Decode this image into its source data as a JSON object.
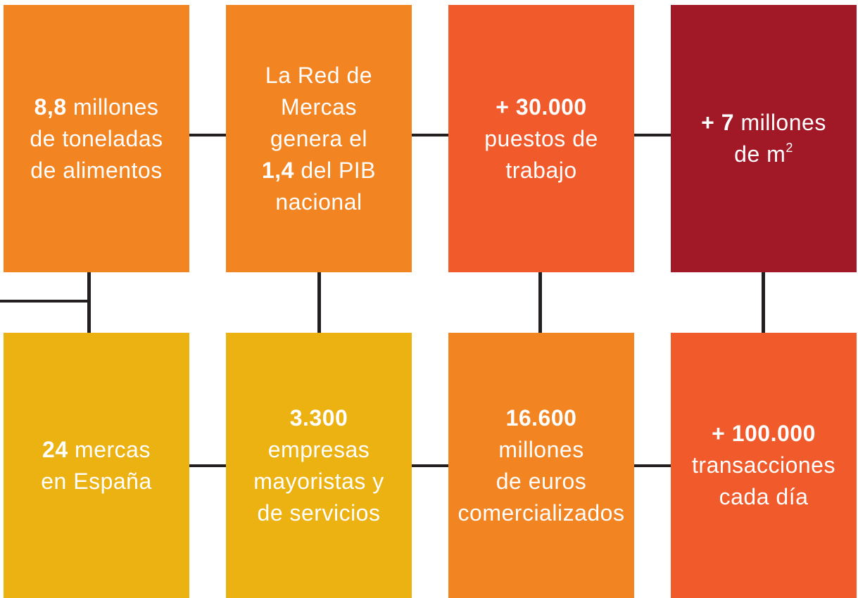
{
  "boxes": [
    {
      "color": "#f28422",
      "lines": [
        [
          {
            "text": "8,8",
            "bold": true
          },
          {
            "text": " millones"
          }
        ],
        [
          {
            "text": "de toneladas"
          }
        ],
        [
          {
            "text": "de alimentos"
          }
        ]
      ]
    },
    {
      "color": "#f28422",
      "lines": [
        [
          {
            "text": "La Red de"
          }
        ],
        [
          {
            "text": "Mercas"
          }
        ],
        [
          {
            "text": "genera el"
          }
        ],
        [
          {
            "text": "1,4",
            "bold": true
          },
          {
            "text": " del PIB"
          }
        ],
        [
          {
            "text": "nacional"
          }
        ]
      ]
    },
    {
      "color": "#f15a2b",
      "lines": [
        [
          {
            "text": "+ 30.000",
            "bold": true
          }
        ],
        [
          {
            "text": "puestos de"
          }
        ],
        [
          {
            "text": "trabajo"
          }
        ]
      ]
    },
    {
      "color": "#a11826",
      "lines": [
        [
          {
            "text": "+ 7",
            "bold": true
          },
          {
            "text": " millones"
          }
        ],
        [
          {
            "text": "de m"
          },
          {
            "text": "2",
            "sup": true
          }
        ]
      ]
    },
    {
      "color": "#ecb212",
      "lines": [
        [
          {
            "text": "24",
            "bold": true
          },
          {
            "text": " mercas"
          }
        ],
        [
          {
            "text": "en España"
          }
        ]
      ]
    },
    {
      "color": "#ecb212",
      "lines": [
        [
          {
            "text": "3.300",
            "bold": true
          }
        ],
        [
          {
            "text": "empresas"
          }
        ],
        [
          {
            "text": "mayoristas y"
          }
        ],
        [
          {
            "text": "de servicios"
          }
        ]
      ]
    },
    {
      "color": "#f28422",
      "lines": [
        [
          {
            "text": "16.600",
            "bold": true
          }
        ],
        [
          {
            "text": "millones"
          }
        ],
        [
          {
            "text": "de euros"
          }
        ],
        [
          {
            "text": "comercializados"
          }
        ]
      ]
    },
    {
      "color": "#f15a2b",
      "lines": [
        [
          {
            "text": "+ 100.000",
            "bold": true
          }
        ],
        [
          {
            "text": "transacciones"
          }
        ],
        [
          {
            "text": "cada día"
          }
        ]
      ]
    }
  ]
}
